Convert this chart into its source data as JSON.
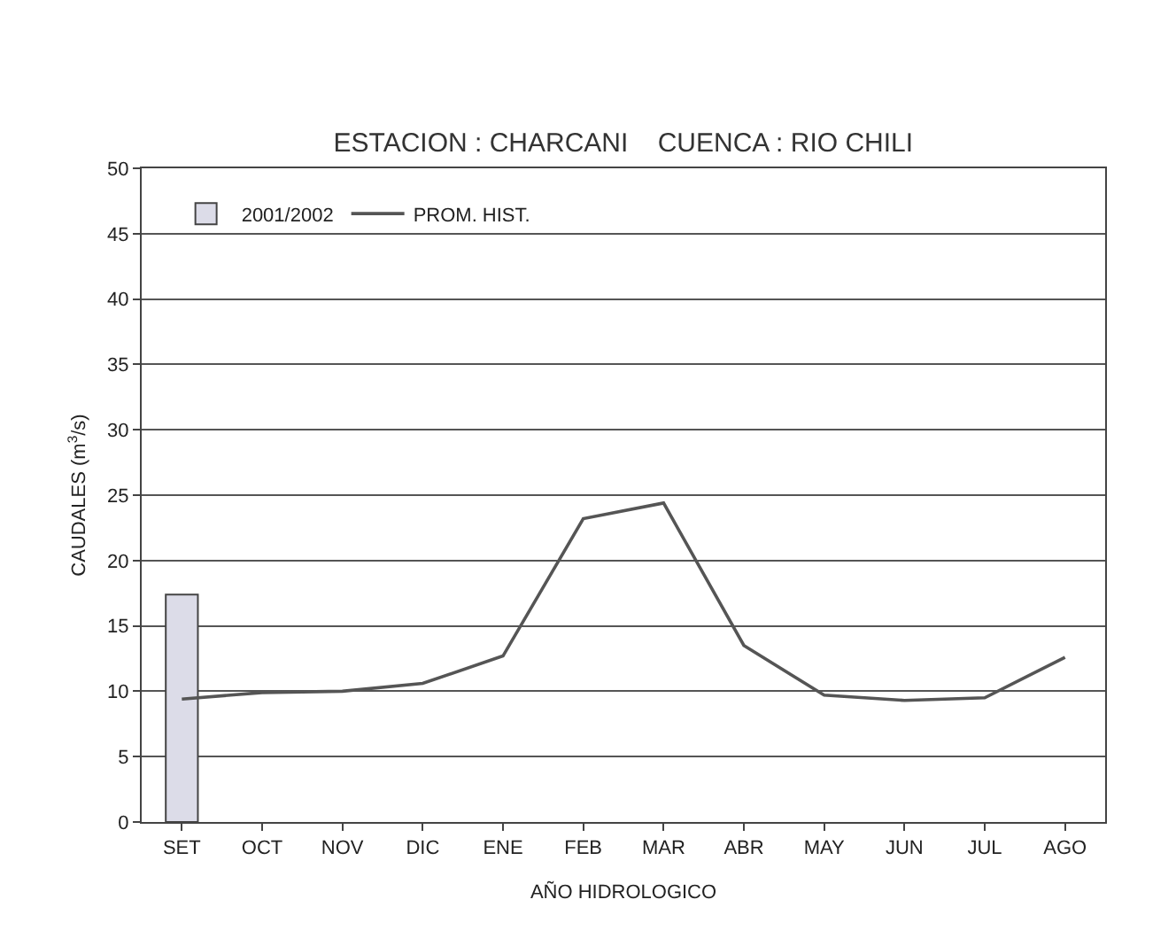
{
  "chart_data": {
    "type": "bar",
    "title": "ESTACION : CHARCANI    CUENCA : RIO CHILI",
    "xlabel": "AÑO HIDROLOGICO",
    "ylabel": "CAUDALES (m$^{3}$/s)",
    "categories": [
      "SET",
      "OCT",
      "NOV",
      "DIC",
      "ENE",
      "FEB",
      "MAR",
      "ABR",
      "MAY",
      "JUN",
      "JUL",
      "AGO"
    ],
    "series": [
      {
        "name": "2001/2002",
        "color": "#dcdce8",
        "values": [
          17.4,
          null,
          null,
          null,
          null,
          null,
          null,
          null,
          null,
          null,
          null,
          null
        ]
      },
      {
        "name": "PROM. HIST.",
        "type": "line",
        "color": "#555555",
        "values": [
          9.4,
          9.9,
          10.0,
          10.6,
          12.7,
          23.2,
          24.4,
          13.5,
          9.7,
          9.3,
          9.5,
          12.6
        ]
      }
    ],
    "ylim": [
      0,
      50
    ],
    "yticks": [
      0,
      5,
      10,
      15,
      20,
      25,
      30,
      35,
      40,
      45,
      50
    ],
    "grid": "y",
    "legend": "top left",
    "marker": "none"
  }
}
